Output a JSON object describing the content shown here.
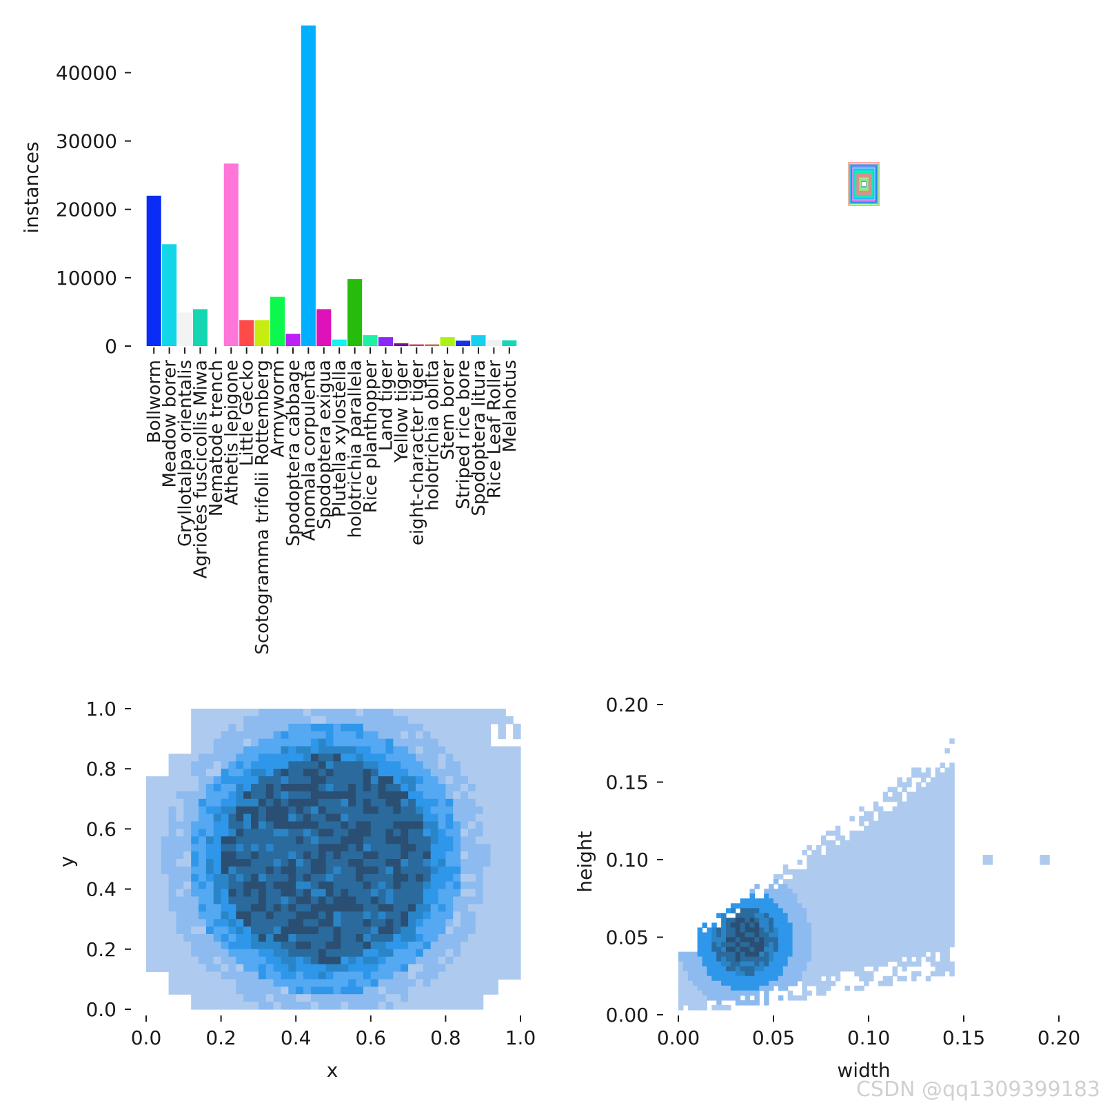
{
  "chart_data": [
    {
      "type": "bar",
      "id": "class-instances",
      "ylabel": "instances",
      "ylim": [
        0,
        47000
      ],
      "yticks": [
        0,
        10000,
        20000,
        30000,
        40000
      ],
      "categories": [
        "Bollworm",
        "Meadow borer",
        "Gryllotalpa orientalis",
        "Agriotes fuscicollis Miwa",
        "Nematode trench",
        "Athetis lepigone",
        "Little Gecko",
        "Scotogramma trifolii Rottemberg",
        "Armyworm",
        "Spodoptera cabbage",
        "Anomala corpulenta",
        "Spodoptera exigua",
        "Plutella xylostella",
        "holotrichia parallela",
        "Rice planthopper",
        "Land tiger",
        "Yellow tiger",
        "eight-character tiger",
        "holotrichia oblita",
        "Stem borer",
        "Striped rice bore",
        "Spodoptera litura",
        "Rice Leaf Roller",
        "Melahotus"
      ],
      "values": [
        22000,
        14900,
        4900,
        5400,
        250,
        26700,
        3800,
        3800,
        7200,
        1800,
        46900,
        5400,
        950,
        9800,
        1600,
        1300,
        400,
        250,
        250,
        1300,
        800,
        1600,
        900,
        850
      ],
      "colors": [
        "#0b2cf5",
        "#12d6e8",
        "#f3f3f3",
        "#14d6b0",
        "#ffffff",
        "#ff75d8",
        "#ff4a4a",
        "#c7ec10",
        "#0df84c",
        "#bb20f7",
        "#00b0ff",
        "#dd12b8",
        "#14f2f2",
        "#26bc0c",
        "#1ef0a4",
        "#8a28f7",
        "#78108c",
        "#d0405a",
        "#c07038",
        "#aaf212",
        "#1430e8",
        "#16d0f0",
        "#f0f0f0",
        "#14d8b8"
      ]
    },
    {
      "type": "heatmap",
      "id": "xy-distribution",
      "xlabel": "x",
      "ylabel": "y",
      "xlim": [
        0,
        1
      ],
      "ylim": [
        0,
        1
      ],
      "xticks": [
        "0.0",
        "0.2",
        "0.4",
        "0.6",
        "0.8",
        "1.0"
      ],
      "yticks": [
        "0.0",
        "0.2",
        "0.4",
        "0.6",
        "0.8",
        "1.0"
      ],
      "palette": [
        "#aecbef",
        "#8dbbf0",
        "#55a8f2",
        "#2f97ea",
        "#2a85c8",
        "#2a6a9c",
        "#2a4f72"
      ]
    },
    {
      "type": "heatmap",
      "id": "wh-distribution",
      "xlabel": "width",
      "ylabel": "height",
      "xlim": [
        0,
        0.2
      ],
      "ylim": [
        0,
        0.2
      ],
      "xticks": [
        "0.00",
        "0.05",
        "0.10",
        "0.15",
        "0.20"
      ],
      "yticks": [
        "0.00",
        "0.05",
        "0.10",
        "0.15",
        "0.20"
      ],
      "palette": [
        "#aecbef",
        "#8dbbf0",
        "#55a8f2",
        "#2f97ea",
        "#2a85c8",
        "#2a6a9c",
        "#2a4f72"
      ]
    },
    {
      "type": "boxes",
      "id": "label-box-overlay",
      "colors": [
        "#ff8080",
        "#80ff80",
        "#8080ff",
        "#14d6e8",
        "#1e5ef0",
        "#c048e8",
        "#00b0ff",
        "#14f2b0"
      ]
    }
  ],
  "watermark": "CSDN @qq1309399183"
}
